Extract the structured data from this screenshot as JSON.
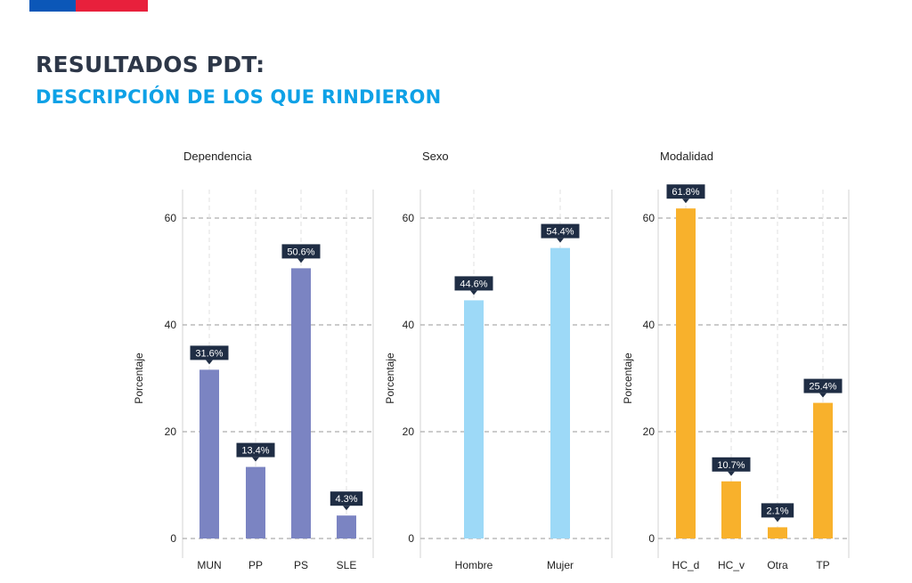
{
  "header": {
    "title": "RESULTADOS PDT:",
    "subtitle": "DESCRIPCIÓN DE LOS QUE RINDIERON"
  },
  "colors": {
    "title": "#2d3748",
    "subtitle": "#0ea1e6",
    "label_bg": "#1f2d44",
    "label_text": "#ffffff"
  },
  "chart_data": [
    {
      "type": "bar",
      "title": "Dependencia",
      "ylabel": "Porcentaje",
      "xlabel": "",
      "categories": [
        "MUN",
        "PP",
        "PS",
        "SLE"
      ],
      "values": [
        31.6,
        13.4,
        50.6,
        4.3
      ],
      "value_labels": [
        "31.6%",
        "13.4%",
        "50.6%",
        "4.3%"
      ],
      "yticks": [
        "0",
        "20",
        "40",
        "60"
      ],
      "ylim": [
        0,
        66
      ],
      "color": "#7b84c2"
    },
    {
      "type": "bar",
      "title": "Sexo",
      "ylabel": "Porcentaje",
      "xlabel": "",
      "categories": [
        "Hombre",
        "Mujer"
      ],
      "values": [
        44.6,
        54.4
      ],
      "value_labels": [
        "44.6%",
        "54.4%"
      ],
      "yticks": [
        "0",
        "20",
        "40",
        "60"
      ],
      "ylim": [
        0,
        66
      ],
      "color": "#9dd9f7"
    },
    {
      "type": "bar",
      "title": "Modalidad",
      "ylabel": "Porcentaje",
      "xlabel": "",
      "categories": [
        "HC_d",
        "HC_v",
        "Otra",
        "TP"
      ],
      "values": [
        61.8,
        10.7,
        2.1,
        25.4
      ],
      "value_labels": [
        "61.8%",
        "10.7%",
        "2.1%",
        "25.4%"
      ],
      "yticks": [
        "0",
        "20",
        "40",
        "60"
      ],
      "ylim": [
        0,
        66
      ],
      "color": "#f8b12c"
    }
  ]
}
